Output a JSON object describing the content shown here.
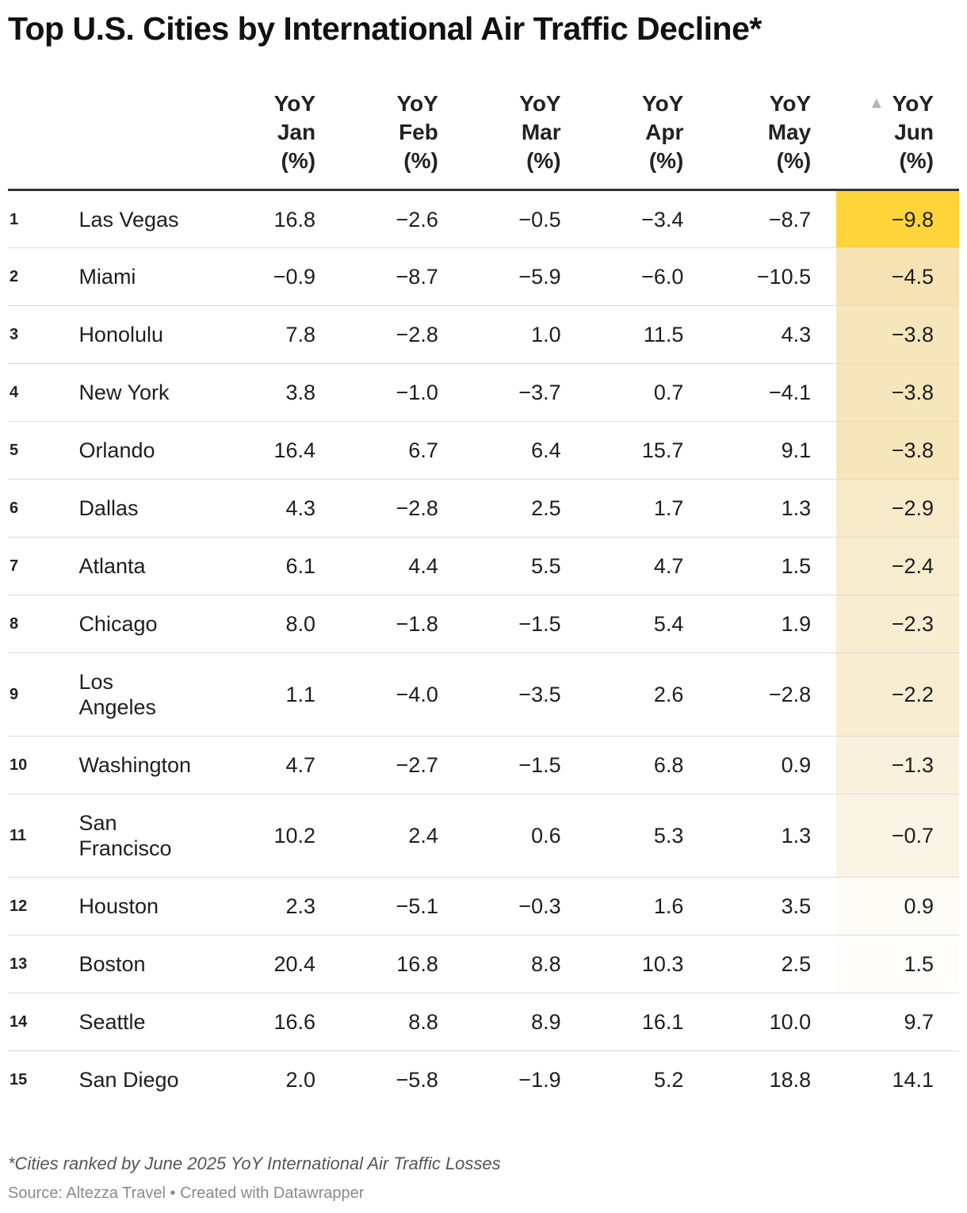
{
  "title": "Top U.S. Cities by International Air Traffic Decline*",
  "footnote": "*Cities ranked by June 2025 YoY International Air Traffic Losses",
  "source": "Source: Altezza Travel • Created with Datawrapper",
  "colors": {
    "highlight_max": "#ffd43b",
    "highlight_mid": "#f5e3b3",
    "highlight_light": "#fbf7ee",
    "header_rule": "#333333",
    "row_rule": "#dcdcdc",
    "sort_icon": "#b5b5b5"
  },
  "sort_icon": "triangle-up-icon",
  "chart_data": {
    "type": "table",
    "title": "Top U.S. Cities by International Air Traffic Decline*",
    "columns": [
      {
        "key": "jan",
        "lines": [
          "YoY",
          "Jan",
          "(%)"
        ]
      },
      {
        "key": "feb",
        "lines": [
          "YoY",
          "Feb",
          "(%)"
        ]
      },
      {
        "key": "mar",
        "lines": [
          "YoY",
          "Mar",
          "(%)"
        ]
      },
      {
        "key": "apr",
        "lines": [
          "YoY",
          "Apr",
          "(%)"
        ]
      },
      {
        "key": "may",
        "lines": [
          "YoY",
          "May",
          "(%)"
        ]
      },
      {
        "key": "jun",
        "lines": [
          "YoY",
          "Jun",
          "(%)"
        ],
        "sorted": "ascending",
        "heatmap": true
      }
    ],
    "rows": [
      {
        "rank": "1",
        "city": "Las Vegas",
        "values": [
          "16.8",
          "−2.6",
          "−0.5",
          "−3.4",
          "−8.7",
          "−9.8"
        ]
      },
      {
        "rank": "2",
        "city": "Miami",
        "values": [
          "−0.9",
          "−8.7",
          "−5.9",
          "−6.0",
          "−10.5",
          "−4.5"
        ]
      },
      {
        "rank": "3",
        "city": "Honolulu",
        "values": [
          "7.8",
          "−2.8",
          "1.0",
          "11.5",
          "4.3",
          "−3.8"
        ]
      },
      {
        "rank": "4",
        "city": "New York",
        "values": [
          "3.8",
          "−1.0",
          "−3.7",
          "0.7",
          "−4.1",
          "−3.8"
        ]
      },
      {
        "rank": "5",
        "city": "Orlando",
        "values": [
          "16.4",
          "6.7",
          "6.4",
          "15.7",
          "9.1",
          "−3.8"
        ]
      },
      {
        "rank": "6",
        "city": "Dallas",
        "values": [
          "4.3",
          "−2.8",
          "2.5",
          "1.7",
          "1.3",
          "−2.9"
        ]
      },
      {
        "rank": "7",
        "city": "Atlanta",
        "values": [
          "6.1",
          "4.4",
          "5.5",
          "4.7",
          "1.5",
          "−2.4"
        ]
      },
      {
        "rank": "8",
        "city": "Chicago",
        "values": [
          "8.0",
          "−1.8",
          "−1.5",
          "5.4",
          "1.9",
          "−2.3"
        ]
      },
      {
        "rank": "9",
        "city": "Los Angeles",
        "values": [
          "1.1",
          "−4.0",
          "−3.5",
          "2.6",
          "−2.8",
          "−2.2"
        ]
      },
      {
        "rank": "10",
        "city": "Washington",
        "values": [
          "4.7",
          "−2.7",
          "−1.5",
          "6.8",
          "0.9",
          "−1.3"
        ]
      },
      {
        "rank": "11",
        "city": "San Francisco",
        "values": [
          "10.2",
          "2.4",
          "0.6",
          "5.3",
          "1.3",
          "−0.7"
        ]
      },
      {
        "rank": "12",
        "city": "Houston",
        "values": [
          "2.3",
          "−5.1",
          "−0.3",
          "1.6",
          "3.5",
          "0.9"
        ]
      },
      {
        "rank": "13",
        "city": "Boston",
        "values": [
          "20.4",
          "16.8",
          "8.8",
          "10.3",
          "2.5",
          "1.5"
        ]
      },
      {
        "rank": "14",
        "city": "Seattle",
        "values": [
          "16.6",
          "8.8",
          "8.9",
          "16.1",
          "10.0",
          "9.7"
        ]
      },
      {
        "rank": "15",
        "city": "San Diego",
        "values": [
          "2.0",
          "−5.8",
          "−1.9",
          "5.2",
          "18.8",
          "14.1"
        ]
      }
    ]
  }
}
